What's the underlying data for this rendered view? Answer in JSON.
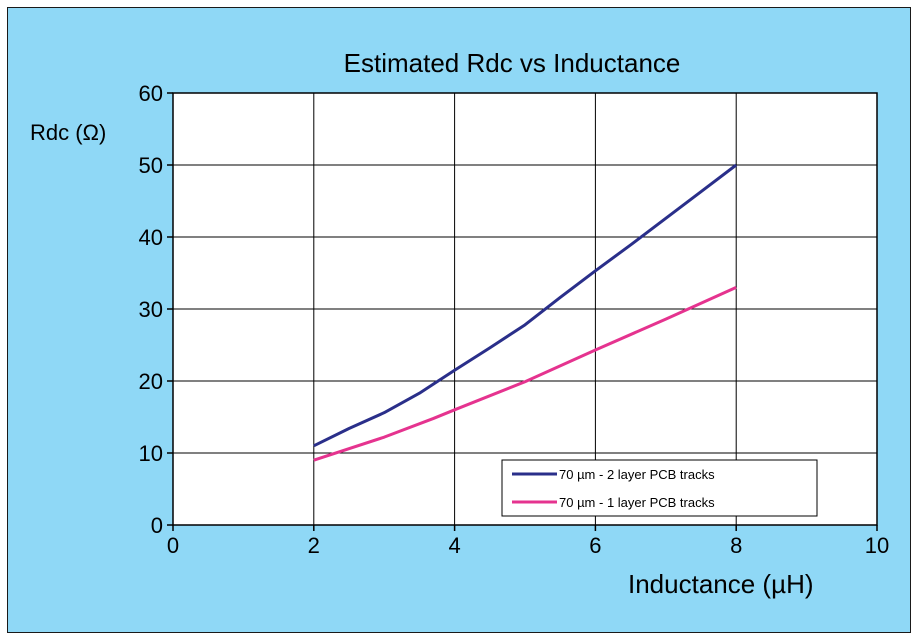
{
  "chart_data": {
    "type": "line",
    "title": "Estimated Rdc vs Inductance",
    "xlabel": "Inductance (µH)",
    "ylabel": "Rdc (Ω)",
    "xlim": [
      0,
      10
    ],
    "ylim": [
      0,
      60
    ],
    "x_ticks": [
      "0",
      "2",
      "4",
      "6",
      "8",
      "10"
    ],
    "y_ticks": [
      "0",
      "10",
      "20",
      "30",
      "40",
      "50",
      "60"
    ],
    "grid": true,
    "legend_position": "bottom-right",
    "series": [
      {
        "name": "70 µm - 2 layer PCB tracks",
        "color": "#2a2f8a",
        "x": [
          2,
          2.5,
          3,
          3.5,
          4,
          4.5,
          5,
          5.5,
          6,
          6.5,
          7,
          7.5,
          8
        ],
        "y": [
          11,
          13.4,
          15.6,
          18.3,
          21.5,
          24.6,
          27.8,
          31.6,
          35.3,
          38.9,
          42.6,
          46.3,
          50
        ]
      },
      {
        "name": "70 µm - 1 layer PCB tracks",
        "color": "#e5338f",
        "x": [
          2,
          3,
          3.7,
          4,
          5,
          6,
          7,
          8
        ],
        "y": [
          9,
          12.2,
          14.8,
          16,
          19.9,
          24.3,
          28.6,
          33
        ]
      }
    ]
  }
}
